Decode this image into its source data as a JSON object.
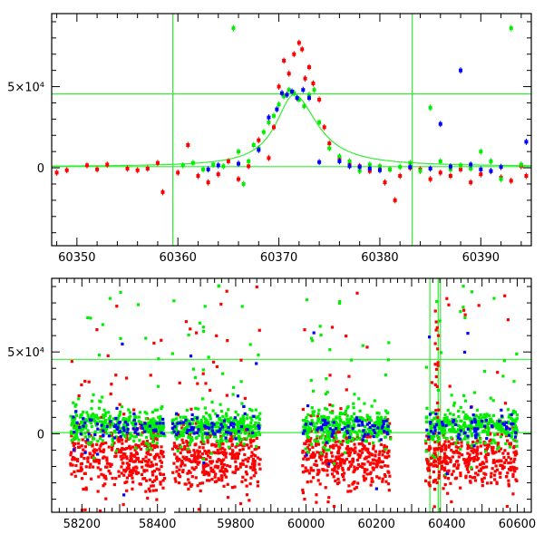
{
  "colors": {
    "red": "#ff0000",
    "green": "#00ee00",
    "blue": "#0000ff",
    "guide": "#33ee33",
    "axis": "#000000"
  },
  "chart_data": [
    {
      "type": "scatter",
      "title": "",
      "xlabel": "",
      "ylabel": "",
      "xlim": [
        60347.5,
        60395
      ],
      "ylim": [
        -48000,
        95000
      ],
      "x_ticks": [
        60350,
        60360,
        60370,
        60380,
        60390
      ],
      "x_tick_labels": [
        "60350",
        "60360",
        "60370",
        "60380",
        "60390"
      ],
      "y_ticks": [
        0,
        50000
      ],
      "y_tick_labels": [
        "0",
        "5×10⁴"
      ],
      "grid": false,
      "guide_lines": {
        "vertical_x": [
          60359.5,
          60383.2
        ],
        "horizontal_y": [
          45500,
          700
        ]
      },
      "model_curve": {
        "type": "line",
        "color": "green",
        "peak_x": 60371.5,
        "peak_y": 45000,
        "baseline_y": 700
      },
      "series": [
        {
          "color": "red",
          "points": [
            [
              60348,
              -3000
            ],
            [
              60349,
              -1500
            ],
            [
              60351,
              1500
            ],
            [
              60352,
              -1000
            ],
            [
              60353,
              2000
            ],
            [
              60355,
              -500
            ],
            [
              60356,
              -1500
            ],
            [
              60357,
              -500
            ],
            [
              60358,
              3000
            ],
            [
              60358.5,
              -15000
            ],
            [
              60360,
              -3000
            ],
            [
              60361,
              14000
            ],
            [
              60362,
              -5000
            ],
            [
              60363,
              -9000
            ],
            [
              60364,
              -4000
            ],
            [
              60365,
              4000
            ],
            [
              60366,
              -7000
            ],
            [
              60367,
              1000
            ],
            [
              60368,
              17000
            ],
            [
              60369,
              6000
            ],
            [
              60369.5,
              25000
            ],
            [
              60370,
              50000
            ],
            [
              60370.5,
              66000
            ],
            [
              60371,
              58000
            ],
            [
              60371.5,
              70000
            ],
            [
              60372,
              77000
            ],
            [
              60372.3,
              73000
            ],
            [
              60372.6,
              55000
            ],
            [
              60373,
              62000
            ],
            [
              60373.4,
              52000
            ],
            [
              60374,
              42000
            ],
            [
              60374.5,
              25000
            ],
            [
              60375,
              15000
            ],
            [
              60376,
              6000
            ],
            [
              60377,
              2500
            ],
            [
              60378,
              1000
            ],
            [
              60379,
              -2000
            ],
            [
              60380,
              500
            ],
            [
              60380.5,
              -9000
            ],
            [
              60381,
              -1000
            ],
            [
              60381.5,
              -20000
            ],
            [
              60382,
              -5000
            ],
            [
              60383,
              0
            ],
            [
              60384,
              -1000
            ],
            [
              60385,
              -7000
            ],
            [
              60386,
              -3000
            ],
            [
              60387,
              -5000
            ],
            [
              60388,
              -1000
            ],
            [
              60389,
              -9000
            ],
            [
              60390,
              -4000
            ],
            [
              60391,
              -2000
            ],
            [
              60392,
              -6000
            ],
            [
              60393,
              -8000
            ],
            [
              60394,
              1000
            ],
            [
              60394.5,
              -5000
            ]
          ]
        },
        {
          "color": "green",
          "points": [
            [
              60360.5,
              1500
            ],
            [
              60361.5,
              3000
            ],
            [
              60362.5,
              -1000
            ],
            [
              60363.5,
              2000
            ],
            [
              60364.5,
              1000
            ],
            [
              60365.5,
              86000
            ],
            [
              60366,
              10000
            ],
            [
              60366.5,
              -10000
            ],
            [
              60367,
              4000
            ],
            [
              60367.5,
              14000
            ],
            [
              60368,
              12000
            ],
            [
              60368.5,
              22000
            ],
            [
              60369,
              28000
            ],
            [
              60369.5,
              32000
            ],
            [
              60370,
              39000
            ],
            [
              60370.5,
              44000
            ],
            [
              60371,
              48000
            ],
            [
              60371.5,
              46000
            ],
            [
              60372,
              42000
            ],
            [
              60372.5,
              38000
            ],
            [
              60373,
              45000
            ],
            [
              60373.5,
              48000
            ],
            [
              60374,
              28000
            ],
            [
              60375,
              12000
            ],
            [
              60376,
              7000
            ],
            [
              60377,
              4000
            ],
            [
              60378,
              -2000
            ],
            [
              60379,
              2000
            ],
            [
              60380,
              1000
            ],
            [
              60381,
              -1000
            ],
            [
              60382,
              500
            ],
            [
              60383,
              3000
            ],
            [
              60384,
              -2000
            ],
            [
              60385,
              37000
            ],
            [
              60386,
              4000
            ],
            [
              60387,
              -1000
            ],
            [
              60388,
              1500
            ],
            [
              60389,
              -500
            ],
            [
              60390,
              10000
            ],
            [
              60391,
              4000
            ],
            [
              60392,
              -7000
            ],
            [
              60393,
              86000
            ],
            [
              60394,
              2000
            ]
          ]
        },
        {
          "color": "blue",
          "points": [
            [
              60363,
              -1000
            ],
            [
              60364,
              1500
            ],
            [
              60366,
              2500
            ],
            [
              60368,
              11000
            ],
            [
              60369,
              31000
            ],
            [
              60369.8,
              36000
            ],
            [
              60370.3,
              46000
            ],
            [
              60370.8,
              45000
            ],
            [
              60371.3,
              47000
            ],
            [
              60371.8,
              43000
            ],
            [
              60372.4,
              48000
            ],
            [
              60373,
              43000
            ],
            [
              60374,
              3500
            ],
            [
              60376,
              4000
            ],
            [
              60377,
              1000
            ],
            [
              60378,
              500
            ],
            [
              60379,
              -500
            ],
            [
              60380,
              -1500
            ],
            [
              60383,
              500
            ],
            [
              60385,
              -500
            ],
            [
              60386,
              27000
            ],
            [
              60387,
              800
            ],
            [
              60388,
              60000
            ],
            [
              60389,
              2000
            ],
            [
              60390,
              -1000
            ],
            [
              60391,
              -2000
            ],
            [
              60392,
              500
            ],
            [
              60394.5,
              16000
            ]
          ]
        }
      ]
    },
    {
      "type": "scatter",
      "title": "",
      "xlabel": "",
      "ylabel": "",
      "xlim": [
        58120,
        60640
      ],
      "ylim": [
        -48000,
        95000
      ],
      "x_ticks": [
        58200,
        58400,
        59800,
        60000,
        60200,
        60400,
        60600
      ],
      "x_tick_labels": [
        "58200",
        "58400",
        "59800",
        "60000",
        "60200",
        "60400",
        "60600"
      ],
      "y_ticks": [
        0,
        50000
      ],
      "y_tick_labels": [
        "0",
        "5×10⁴"
      ],
      "grid": false,
      "note_axis": "x axis is broken between 58400 and 59800",
      "guide_lines": {
        "vertical_x": [
          60359.5,
          60383.2
        ],
        "horizontal_y": [
          45500,
          700
        ]
      },
      "series_summary": [
        {
          "color": "red",
          "observing_seasons": [
            [
              58170,
              58420
            ],
            [
              59620,
              59870
            ],
            [
              59990,
              60240
            ],
            [
              60340,
              60600
            ]
          ],
          "typical_y_range": [
            -28000,
            -2000
          ],
          "outlier_y_range": [
            -48000,
            90000
          ]
        },
        {
          "color": "green",
          "observing_seasons": [
            [
              58170,
              58420
            ],
            [
              59620,
              59870
            ],
            [
              59990,
              60240
            ],
            [
              60340,
              60600
            ]
          ],
          "typical_y_range": [
            -3000,
            12000
          ],
          "outlier_y_range": [
            -12000,
            92000
          ]
        },
        {
          "color": "blue",
          "observing_seasons": [
            [
              58170,
              58420
            ],
            [
              59620,
              59870
            ],
            [
              59990,
              60240
            ],
            [
              60340,
              60600
            ]
          ],
          "typical_y_range": [
            -2000,
            10000
          ],
          "outlier_y_range": [
            -40000,
            65000
          ]
        }
      ],
      "flare": {
        "x": 60371.5,
        "y_max": 77000
      }
    }
  ]
}
